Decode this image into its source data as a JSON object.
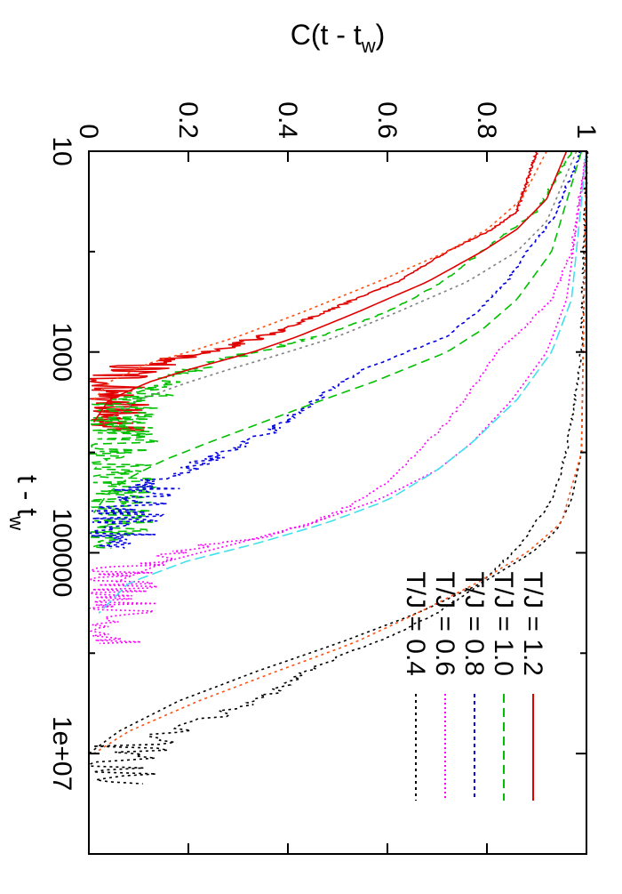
{
  "chart_data": {
    "type": "line",
    "orientation": "rotated 90° clockwise (page viewed sideways)",
    "xlabel": "t - t",
    "xlabel_sub": "w",
    "ylabel": "C(t - t",
    "ylabel_sub": "w",
    "ylabel_close": ")",
    "x_scale": "log",
    "xlim": [
      10,
      100000000
    ],
    "ylim": [
      0,
      1
    ],
    "x_ticks": [
      {
        "value": 10,
        "label": "10"
      },
      {
        "value": 1000,
        "label": "1000"
      },
      {
        "value": 100000,
        "label": "100000"
      },
      {
        "value": 10000000,
        "label": "1e+07"
      }
    ],
    "x_minor_ticks": [
      100,
      10000,
      1000000,
      100000000
    ],
    "y_ticks": [
      {
        "value": 0,
        "label": "0"
      },
      {
        "value": 0.2,
        "label": "0.2"
      },
      {
        "value": 0.4,
        "label": "0.4"
      },
      {
        "value": 0.6,
        "label": "0.6"
      },
      {
        "value": 0.8,
        "label": "0.8"
      },
      {
        "value": 1,
        "label": "1"
      }
    ],
    "grid": false,
    "legend_position": "top-right",
    "series": [
      {
        "name": "T/J = 1.2",
        "color": "#e00000",
        "dash": "none",
        "noise": true,
        "x": [
          10,
          40,
          60,
          100,
          200,
          350,
          500,
          700,
          900,
          1100,
          1300,
          1600,
          2000,
          3000,
          6000
        ],
        "y": [
          0.9,
          0.86,
          0.81,
          0.72,
          0.62,
          0.5,
          0.43,
          0.35,
          0.27,
          0.2,
          0.12,
          0.07,
          0.04,
          0.03,
          0.02
        ]
      },
      {
        "name": "T/J = 1.0",
        "color": "#00c000",
        "dash": "10,6",
        "noise": true,
        "x": [
          10,
          40,
          60,
          100,
          200,
          400,
          600,
          800,
          1000,
          1300,
          1800,
          2500,
          4000,
          8000,
          30000,
          90000
        ],
        "y": [
          0.97,
          0.9,
          0.85,
          0.79,
          0.71,
          0.6,
          0.5,
          0.42,
          0.33,
          0.25,
          0.17,
          0.11,
          0.07,
          0.05,
          0.04,
          0.04
        ]
      },
      {
        "name": "T/J = 0.8",
        "color": "#0000e0",
        "dash": "4,4",
        "noise": true,
        "x": [
          10,
          50,
          100,
          200,
          400,
          700,
          1000,
          1500,
          2500,
          4000,
          6000,
          9000,
          12000,
          18000,
          30000,
          60000,
          90000
        ],
        "y": [
          0.99,
          0.93,
          0.88,
          0.84,
          0.78,
          0.72,
          0.64,
          0.55,
          0.48,
          0.42,
          0.37,
          0.3,
          0.24,
          0.14,
          0.08,
          0.05,
          0.04
        ]
      },
      {
        "name": "T/J = 0.6",
        "color": "#ff00ff",
        "dash": "2,3",
        "noise": true,
        "x": [
          10,
          100,
          300,
          600,
          1000,
          2000,
          5000,
          10000,
          20000,
          35000,
          50000,
          70000,
          90000,
          150000,
          400000,
          800000
        ],
        "y": [
          1.0,
          0.97,
          0.93,
          0.87,
          0.82,
          0.78,
          0.72,
          0.66,
          0.6,
          0.52,
          0.45,
          0.35,
          0.2,
          0.08,
          0.05,
          0.04
        ]
      },
      {
        "name": "T/J = 0.4",
        "color": "#000000",
        "dash": "3,4",
        "noise": true,
        "x": [
          10,
          1000,
          10000,
          30000,
          80000,
          200000,
          400000,
          700000,
          1000000,
          1500000,
          2500000,
          4000000,
          6000000,
          8000000,
          10000000,
          13000000,
          20000000
        ],
        "y": [
          1.0,
          0.99,
          0.96,
          0.93,
          0.87,
          0.79,
          0.7,
          0.6,
          0.52,
          0.44,
          0.37,
          0.27,
          0.17,
          0.1,
          0.06,
          0.04,
          0.05
        ]
      }
    ],
    "fit_curves": [
      {
        "color": "#ff5010",
        "dash": "3,4",
        "x": [
          10,
          30,
          60,
          100,
          200,
          400,
          700,
          1000,
          1300,
          2000,
          3000
        ],
        "y": [
          0.92,
          0.87,
          0.8,
          0.72,
          0.58,
          0.43,
          0.3,
          0.2,
          0.12,
          0.04,
          0.01
        ]
      },
      {
        "color": "#e00000",
        "dash": "none",
        "x": [
          10,
          30,
          60,
          100,
          200,
          400,
          700,
          1000,
          1500,
          2000,
          3000,
          5000
        ],
        "y": [
          0.96,
          0.92,
          0.86,
          0.79,
          0.68,
          0.54,
          0.42,
          0.33,
          0.2,
          0.12,
          0.04,
          0.01
        ]
      },
      {
        "color": "#808080",
        "dash": "3,4",
        "x": [
          10,
          50,
          100,
          200,
          400,
          700,
          1000,
          1500,
          2000,
          3000,
          5000
        ],
        "y": [
          0.98,
          0.92,
          0.86,
          0.76,
          0.62,
          0.5,
          0.4,
          0.28,
          0.2,
          0.1,
          0.03
        ]
      },
      {
        "color": "#00c000",
        "dash": "10,6",
        "x": [
          10,
          100,
          300,
          600,
          1000,
          2000,
          3000,
          5000,
          8000,
          12000,
          18000,
          25000,
          40000
        ],
        "y": [
          0.99,
          0.93,
          0.86,
          0.79,
          0.72,
          0.57,
          0.47,
          0.35,
          0.24,
          0.15,
          0.08,
          0.04,
          0.01
        ]
      },
      {
        "color": "#ff00ff",
        "dash": "2,3",
        "x": [
          10,
          300,
          1000,
          3000,
          8000,
          15000,
          30000,
          50000,
          80000,
          120000,
          200000
        ],
        "y": [
          1.0,
          0.96,
          0.92,
          0.85,
          0.77,
          0.7,
          0.58,
          0.45,
          0.3,
          0.16,
          0.05
        ]
      },
      {
        "color": "#40e0f0",
        "dash": "12,5",
        "x": [
          10,
          300,
          1000,
          3000,
          8000,
          15000,
          30000,
          50000,
          80000,
          120000,
          200000,
          400000
        ],
        "y": [
          1.0,
          0.97,
          0.93,
          0.86,
          0.77,
          0.7,
          0.6,
          0.48,
          0.34,
          0.2,
          0.08,
          0.02
        ]
      },
      {
        "color": "#000000",
        "dash": "3,4",
        "x": [
          10,
          10000,
          30000,
          60000,
          100000,
          200000,
          400000,
          800000,
          1500000,
          3000000,
          6000000,
          10000000
        ],
        "y": [
          1.0,
          0.99,
          0.97,
          0.94,
          0.89,
          0.79,
          0.66,
          0.5,
          0.34,
          0.18,
          0.06,
          0.0
        ]
      },
      {
        "color": "#ff5010",
        "dash": "3,4",
        "x": [
          10,
          10000,
          50000,
          100000,
          200000,
          400000,
          800000,
          1500000,
          3000000,
          6000000,
          10000000
        ],
        "y": [
          1.0,
          0.99,
          0.95,
          0.88,
          0.78,
          0.66,
          0.53,
          0.38,
          0.22,
          0.08,
          0.01
        ]
      }
    ]
  }
}
